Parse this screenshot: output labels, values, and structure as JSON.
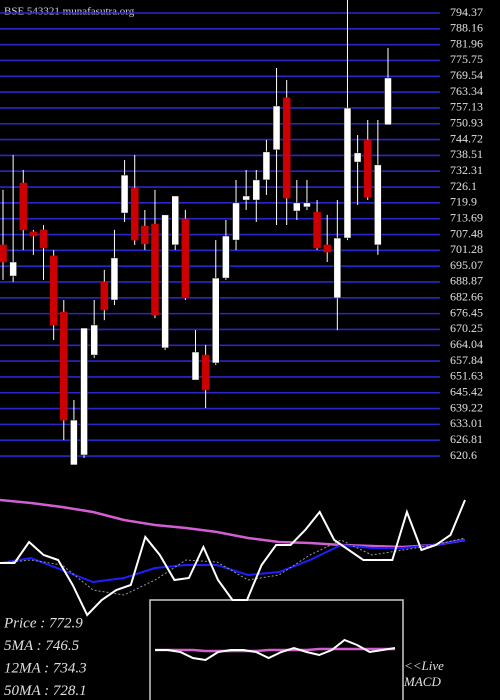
{
  "chart_data": [
    {
      "type": "candlestick",
      "title": "BSE 543321 munafasutra.org",
      "open": [
        703.4,
        691.2,
        727.7,
        708.5,
        709.3,
        699.1,
        677.1,
        617.1,
        621.0,
        660.2,
        688.9,
        681.8,
        715.9,
        725.7,
        710.8,
        711.6,
        663.0,
        703.4,
        713.6,
        650.4,
        660.2,
        657.1,
        690.4,
        705.3,
        721.0,
        721.0,
        728.9,
        740.7,
        761.1,
        716.7,
        718.3,
        716.3,
        703.4,
        682.6,
        706.1,
        735.9,
        744.6,
        703.4,
        750.5
      ],
      "high": [
        725.0,
        738.7,
        732.8,
        709.3,
        711.2,
        701.4,
        681.8,
        642.6,
        670.8,
        681.8,
        693.6,
        709.3,
        736.7,
        738.7,
        717.1,
        725.0,
        715.2,
        722.6,
        717.1,
        670.0,
        664.2,
        705.3,
        713.2,
        728.9,
        732.8,
        732.8,
        744.6,
        772.8,
        768.1,
        728.9,
        728.9,
        721.0,
        715.2,
        721.0,
        799.5,
        746.5,
        752.4,
        752.4,
        780.7
      ],
      "low": [
        689.7,
        688.9,
        701.4,
        699.5,
        689.7,
        666.1,
        626.9,
        617.1,
        619.8,
        659.1,
        673.9,
        679.8,
        712.4,
        703.4,
        701.4,
        674.7,
        662.2,
        701.4,
        681.8,
        650.4,
        639.4,
        656.3,
        689.7,
        701.4,
        717.1,
        712.4,
        723.0,
        711.2,
        711.2,
        713.2,
        717.1,
        701.4,
        696.7,
        670.0,
        705.3,
        719.1,
        721.0,
        699.5,
        750.5
      ],
      "close": [
        696.7,
        696.7,
        709.3,
        706.9,
        702.2,
        672.0,
        634.7,
        634.7,
        670.8,
        672.0,
        677.9,
        698.3,
        730.8,
        705.3,
        703.8,
        675.9,
        715.2,
        722.6,
        682.6,
        661.4,
        646.5,
        690.4,
        706.9,
        719.9,
        722.6,
        728.9,
        739.9,
        757.9,
        721.8,
        719.9,
        719.9,
        702.2,
        700.6,
        706.1,
        757.1,
        739.5,
        722.2,
        734.8,
        768.9
      ],
      "up_color": "#ffffff",
      "down_color": "#cc0000",
      "grid": true,
      "grid_color": "#2828c8",
      "ylim": [
        615.9,
        799.47
      ],
      "yticks": [
        794.37,
        788.16,
        781.96,
        775.75,
        769.54,
        763.34,
        757.13,
        750.93,
        744.72,
        738.51,
        732.31,
        726.1,
        719.9,
        713.69,
        707.48,
        701.28,
        695.07,
        688.87,
        682.66,
        676.45,
        670.25,
        664.04,
        657.84,
        651.63,
        645.42,
        639.22,
        633.01,
        626.81,
        620.6
      ]
    },
    {
      "type": "line",
      "series": [
        {
          "name": "50MA",
          "color": "#d25ed2",
          "values": [
            100,
            97,
            93,
            88,
            80,
            75,
            72,
            68,
            62,
            58,
            57,
            55,
            54,
            53,
            55,
            60
          ]
        },
        {
          "name": "12MA",
          "color": "#1e1eff",
          "values": [
            37,
            42,
            30,
            18,
            22,
            32,
            35,
            35,
            25,
            28,
            40,
            55,
            52,
            52,
            55,
            60
          ]
        },
        {
          "name": "5MA",
          "color": "#9a9a9a",
          "values": [
            37,
            40,
            35,
            10,
            5,
            20,
            40,
            38,
            20,
            25,
            45,
            60,
            45,
            50,
            55,
            62
          ]
        },
        {
          "name": "Price",
          "color": "#ffffff",
          "values": [
            37,
            37,
            58,
            45,
            40,
            15,
            -15,
            0,
            10,
            15,
            63,
            45,
            20,
            22,
            53,
            20,
            0,
            0,
            35,
            55,
            55,
            70,
            88,
            60,
            50,
            40,
            40,
            40,
            88,
            50,
            55,
            65,
            100
          ]
        }
      ],
      "stats": [
        "Price  : 772.9",
        "5MA  : 746.5",
        "12MA  : 734.3",
        "50MA  : 728.1"
      ]
    },
    {
      "type": "line",
      "title_lines": [
        "<<Live",
        "MACD"
      ],
      "series": [
        {
          "color": "#d25ed2",
          "values": [
            0,
            0,
            0,
            0,
            -1,
            -1,
            -1,
            -1,
            -1,
            0,
            0,
            0,
            0,
            1,
            1,
            1,
            1,
            1,
            1,
            1
          ]
        },
        {
          "color": "#ffffff",
          "values": [
            0,
            0,
            -2,
            -8,
            -10,
            -2,
            0,
            0,
            -2,
            -8,
            -2,
            2,
            -2,
            -5,
            0,
            10,
            5,
            -2,
            0,
            2
          ]
        }
      ]
    }
  ]
}
